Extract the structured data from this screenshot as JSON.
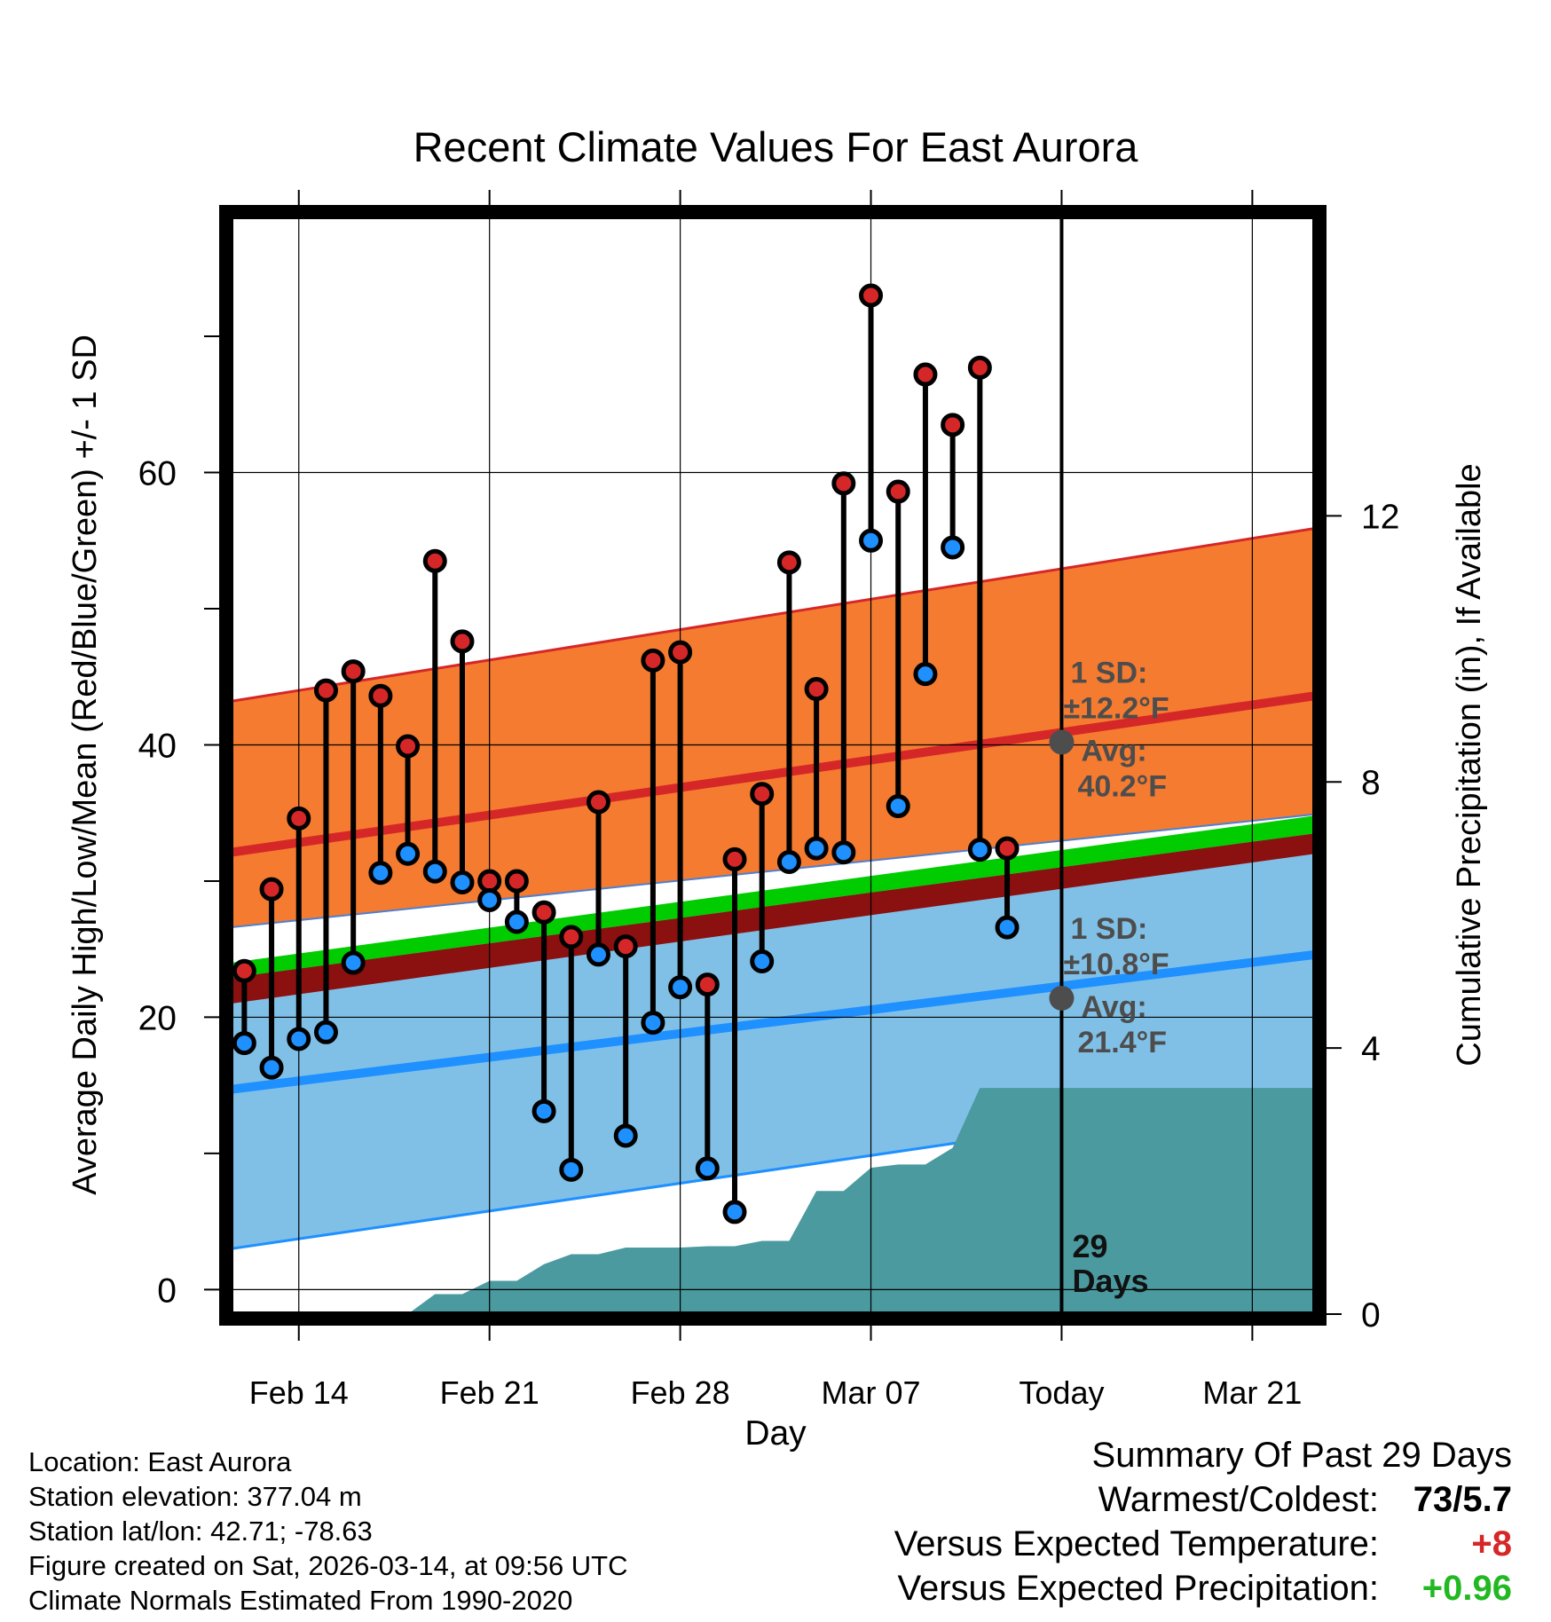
{
  "colors": {
    "high": "#d62728",
    "low": "#1e90ff",
    "orange_band": "#f47b30",
    "blue_band": "#80c0e6",
    "green_band": "#00cc00",
    "darkred_band": "#8b1010",
    "precip": "#4a9aa0",
    "annotation": "#4d4d4d",
    "warm_value": "#d62728",
    "wet_value": "#22b822"
  },
  "chart_data": {
    "type": "line",
    "title": "Recent Climate Values For East Aurora",
    "xlabel": "Day",
    "ylabel": "Average Daily High/Low/Mean (Red/Blue/Green) +/- 1 SD",
    "y2label": "Cumulative Precipitation (in), If Available",
    "xlim": [
      -0.5,
      39.3
    ],
    "ylim": [
      -1.8,
      78.8
    ],
    "y2lim": [
      0,
      16.5
    ],
    "x_ticks": [
      {
        "x": 2,
        "label": "Feb 14"
      },
      {
        "x": 9,
        "label": "Feb 21"
      },
      {
        "x": 16,
        "label": "Feb 28"
      },
      {
        "x": 23,
        "label": "Mar 07"
      },
      {
        "x": 30,
        "label": "Today"
      },
      {
        "x": 37,
        "label": "Mar 21"
      }
    ],
    "y_ticks": [
      0,
      20,
      40,
      60
    ],
    "y_minor_ticks": [
      10,
      30,
      50,
      70
    ],
    "y2_ticks": [
      0,
      4,
      8,
      12
    ],
    "daily": {
      "x": [
        0,
        1,
        2,
        3,
        4,
        5,
        6,
        7,
        8,
        9,
        10,
        11,
        12,
        13,
        14,
        15,
        16,
        17,
        18,
        19,
        20,
        21,
        22,
        23,
        24,
        25,
        26,
        27,
        28
      ],
      "highs": [
        23.4,
        29.4,
        34.6,
        44.0,
        45.4,
        43.6,
        39.9,
        53.5,
        47.6,
        30.0,
        30.0,
        27.7,
        25.9,
        35.8,
        25.2,
        46.2,
        46.8,
        22.4,
        31.6,
        36.4,
        53.4,
        44.1,
        59.2,
        73.0,
        58.6,
        67.2,
        63.5,
        67.7,
        32.4
      ],
      "lows": [
        18.1,
        16.3,
        18.4,
        18.9,
        24.0,
        30.6,
        32.0,
        30.7,
        29.9,
        28.6,
        27.0,
        13.1,
        8.8,
        24.6,
        11.3,
        19.6,
        22.2,
        8.9,
        5.7,
        24.1,
        31.4,
        32.4,
        32.1,
        55.0,
        35.5,
        45.2,
        54.5,
        32.3,
        26.6
      ]
    },
    "normals": {
      "x": [
        -0.5,
        39.3
      ],
      "avg_high": [
        32.1,
        43.6
      ],
      "avg_low": [
        14.7,
        24.6
      ],
      "high_upper": [
        43.2,
        55.9
      ],
      "high_lower": [
        26.6,
        34.9
      ],
      "low_upper": [
        23.7,
        34.8
      ],
      "low_lower": [
        3.0,
        14.6
      ],
      "mean_upper": [
        24.0,
        34.8
      ],
      "mean_lower": [
        22.9,
        33.5
      ],
      "darkred_lower": [
        21.0,
        32.0
      ]
    },
    "precip": {
      "x": [
        0,
        1,
        2,
        3,
        4,
        5,
        6,
        7,
        8,
        9,
        10,
        11,
        12,
        13,
        14,
        15,
        16,
        17,
        18,
        19,
        20,
        21,
        22,
        23,
        24,
        25,
        26,
        27,
        28,
        39.3
      ],
      "values": [
        0,
        0,
        0,
        0,
        0,
        0,
        0,
        0.3,
        0.3,
        0.5,
        0.5,
        0.75,
        0.9,
        0.9,
        1.0,
        1.0,
        1.0,
        1.02,
        1.02,
        1.1,
        1.1,
        1.85,
        1.85,
        2.2,
        2.25,
        2.25,
        2.5,
        3.4,
        3.4,
        3.4
      ]
    },
    "annotations": {
      "high": {
        "sd_title": "1 SD:",
        "sd_value": "±12.2°F",
        "avg_title": "Avg:",
        "avg_value": "40.2°F",
        "avg": 40.2
      },
      "low": {
        "sd_title": "1 SD:",
        "sd_value": "±10.8°F",
        "avg_title": "Avg:",
        "avg_value": "21.4°F",
        "avg": 21.4
      },
      "days_number": "29",
      "days_label": "Days"
    },
    "today_x": 30
  },
  "footer": {
    "location": "Location: East Aurora",
    "elevation": "Station elevation: 377.04 m",
    "latlon": "Station lat/lon: 42.71; -78.63",
    "created": "Figure created on Sat, 2026-03-14, at 09:56 UTC",
    "normals_period": "Climate Normals Estimated From 1990-2020"
  },
  "summary": {
    "title": "Summary Of Past 29 Days",
    "warmest_label": "Warmest/Coldest:",
    "warmest_value": "73/5.7",
    "temp_label": "Versus Expected Temperature:",
    "temp_value": "+8",
    "precip_label": "Versus Expected Precipitation:",
    "precip_value": "+0.96"
  }
}
